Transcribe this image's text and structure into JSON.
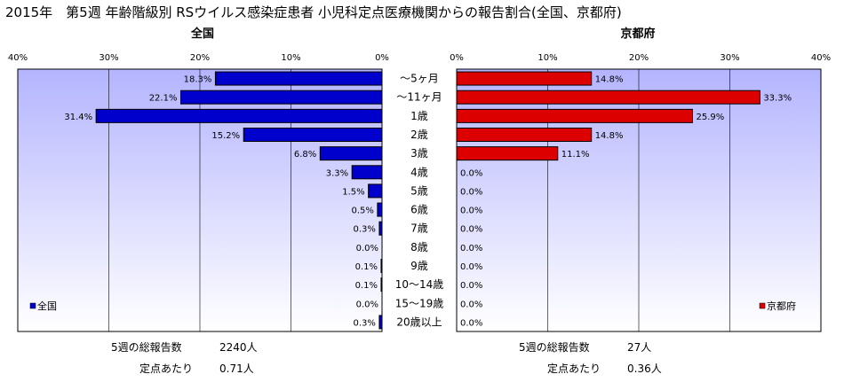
{
  "title": "2015年　第5週 年齢階級別 RSウイルス感染症患者 小児科定点医療機関からの報告割合(全国、京都府)",
  "colors": {
    "national_bar": "#0000cc",
    "kyoto_bar": "#dd0000",
    "plot_bg_top": "#b4b4ff",
    "plot_bg_bottom": "#ffffff",
    "grid": "#000000"
  },
  "chart_data": [
    {
      "type": "bar",
      "orientation": "horizontal",
      "direction": "right-to-left",
      "title": "全国",
      "categories": [
        "～5ヶ月",
        "～11ヶ月",
        "1歳",
        "2歳",
        "3歳",
        "4歳",
        "5歳",
        "6歳",
        "7歳",
        "8歳",
        "9歳",
        "10～14歳",
        "15～19歳",
        "20歳以上"
      ],
      "values": [
        18.3,
        22.1,
        31.4,
        15.2,
        6.8,
        3.3,
        1.5,
        0.5,
        0.3,
        0.0,
        0.1,
        0.1,
        0.0,
        0.3
      ],
      "value_labels": [
        "18.3%",
        "22.1%",
        "31.4%",
        "15.2%",
        "6.8%",
        "3.3%",
        "1.5%",
        "0.5%",
        "0.3%",
        "0.0%",
        "0.1%",
        "0.1%",
        "0.0%",
        "0.3%"
      ],
      "xlim": [
        0,
        40
      ],
      "ticks": [
        "0%",
        "10%",
        "20%",
        "30%",
        "40%"
      ],
      "grid": true,
      "legend": {
        "label": "全国",
        "position": "bottom-left"
      }
    },
    {
      "type": "bar",
      "orientation": "horizontal",
      "direction": "left-to-right",
      "title": "京都府",
      "categories": [
        "～5ヶ月",
        "～11ヶ月",
        "1歳",
        "2歳",
        "3歳",
        "4歳",
        "5歳",
        "6歳",
        "7歳",
        "8歳",
        "9歳",
        "10～14歳",
        "15～19歳",
        "20歳以上"
      ],
      "values": [
        14.8,
        33.3,
        25.9,
        14.8,
        11.1,
        0.0,
        0.0,
        0.0,
        0.0,
        0.0,
        0.0,
        0.0,
        0.0,
        0.0
      ],
      "value_labels": [
        "14.8%",
        "33.3%",
        "25.9%",
        "14.8%",
        "11.1%",
        "0.0%",
        "0.0%",
        "0.0%",
        "0.0%",
        "0.0%",
        "0.0%",
        "0.0%",
        "0.0%",
        "0.0%"
      ],
      "xlim": [
        0,
        40
      ],
      "ticks": [
        "0%",
        "10%",
        "20%",
        "30%",
        "40%"
      ],
      "grid": true,
      "legend": {
        "label": "京都府",
        "position": "bottom-right"
      }
    }
  ],
  "summary": {
    "national": {
      "total_label": "5週の総報告数",
      "total_value": "2240人",
      "per_label": "定点あたり",
      "per_value": "0.71人"
    },
    "kyoto": {
      "total_label": "5週の総報告数",
      "total_value": "27人",
      "per_label": "定点あたり",
      "per_value": "0.36人"
    }
  }
}
